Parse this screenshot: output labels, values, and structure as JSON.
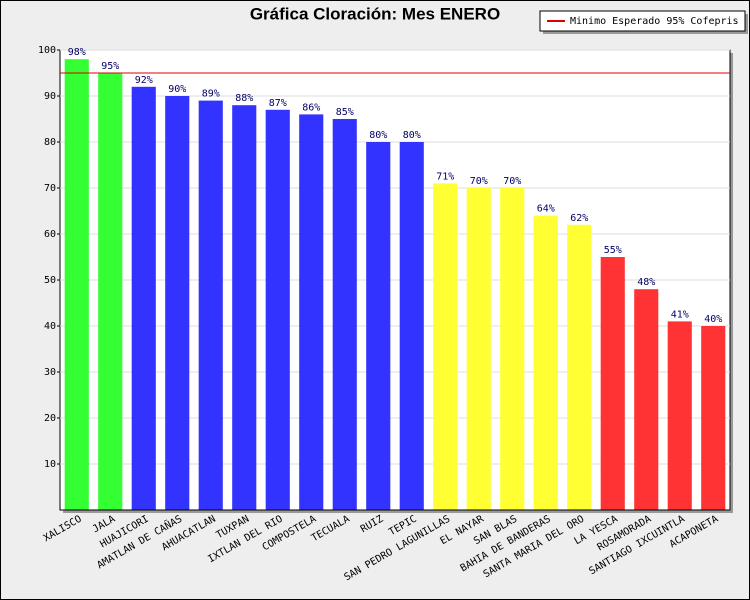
{
  "chart_data": {
    "type": "bar",
    "title": "Gráfica Cloración: Mes ENERO",
    "categories": [
      "XALISCO",
      "JALA",
      "HUAJICORI",
      "AMATLAN DE CAÑAS",
      "AHUACATLAN",
      "TUXPAN",
      "IXTLAN DEL RIO",
      "COMPOSTELA",
      "TECUALA",
      "RUIZ",
      "TEPIC",
      "SAN PEDRO LAGUNILLAS",
      "EL NAYAR",
      "SAN BLAS",
      "BAHIA DE BANDERAS",
      "SANTA MARIA DEL ORO",
      "LA YESCA",
      "ROSAMORADA",
      "SANTIAGO IXCUINTLA",
      "ACAPONETA"
    ],
    "values": [
      98,
      95,
      92,
      90,
      89,
      88,
      87,
      86,
      85,
      80,
      80,
      71,
      70,
      70,
      64,
      62,
      55,
      48,
      41,
      40
    ],
    "value_labels": [
      "98%",
      "95%",
      "92%",
      "90%",
      "89%",
      "88%",
      "87%",
      "86%",
      "85%",
      "80%",
      "80%",
      "71%",
      "70%",
      "70%",
      "64%",
      "62%",
      "55%",
      "48%",
      "41%",
      "40%"
    ],
    "colors": [
      "#33ff33",
      "#33ff33",
      "#3333ff",
      "#3333ff",
      "#3333ff",
      "#3333ff",
      "#3333ff",
      "#3333ff",
      "#3333ff",
      "#3333ff",
      "#3333ff",
      "#ffff33",
      "#ffff33",
      "#ffff33",
      "#ffff33",
      "#ffff33",
      "#ff3333",
      "#ff3333",
      "#ff3333",
      "#ff3333"
    ],
    "reference_line": {
      "value": 95,
      "label": "Minimo Esperado 95% Cofepris",
      "color": "#dd0000"
    },
    "ylim": [
      0,
      100
    ],
    "yticks": [
      10,
      20,
      30,
      40,
      50,
      60,
      70,
      80,
      90,
      100
    ],
    "grid": true,
    "legend": "top-right"
  }
}
